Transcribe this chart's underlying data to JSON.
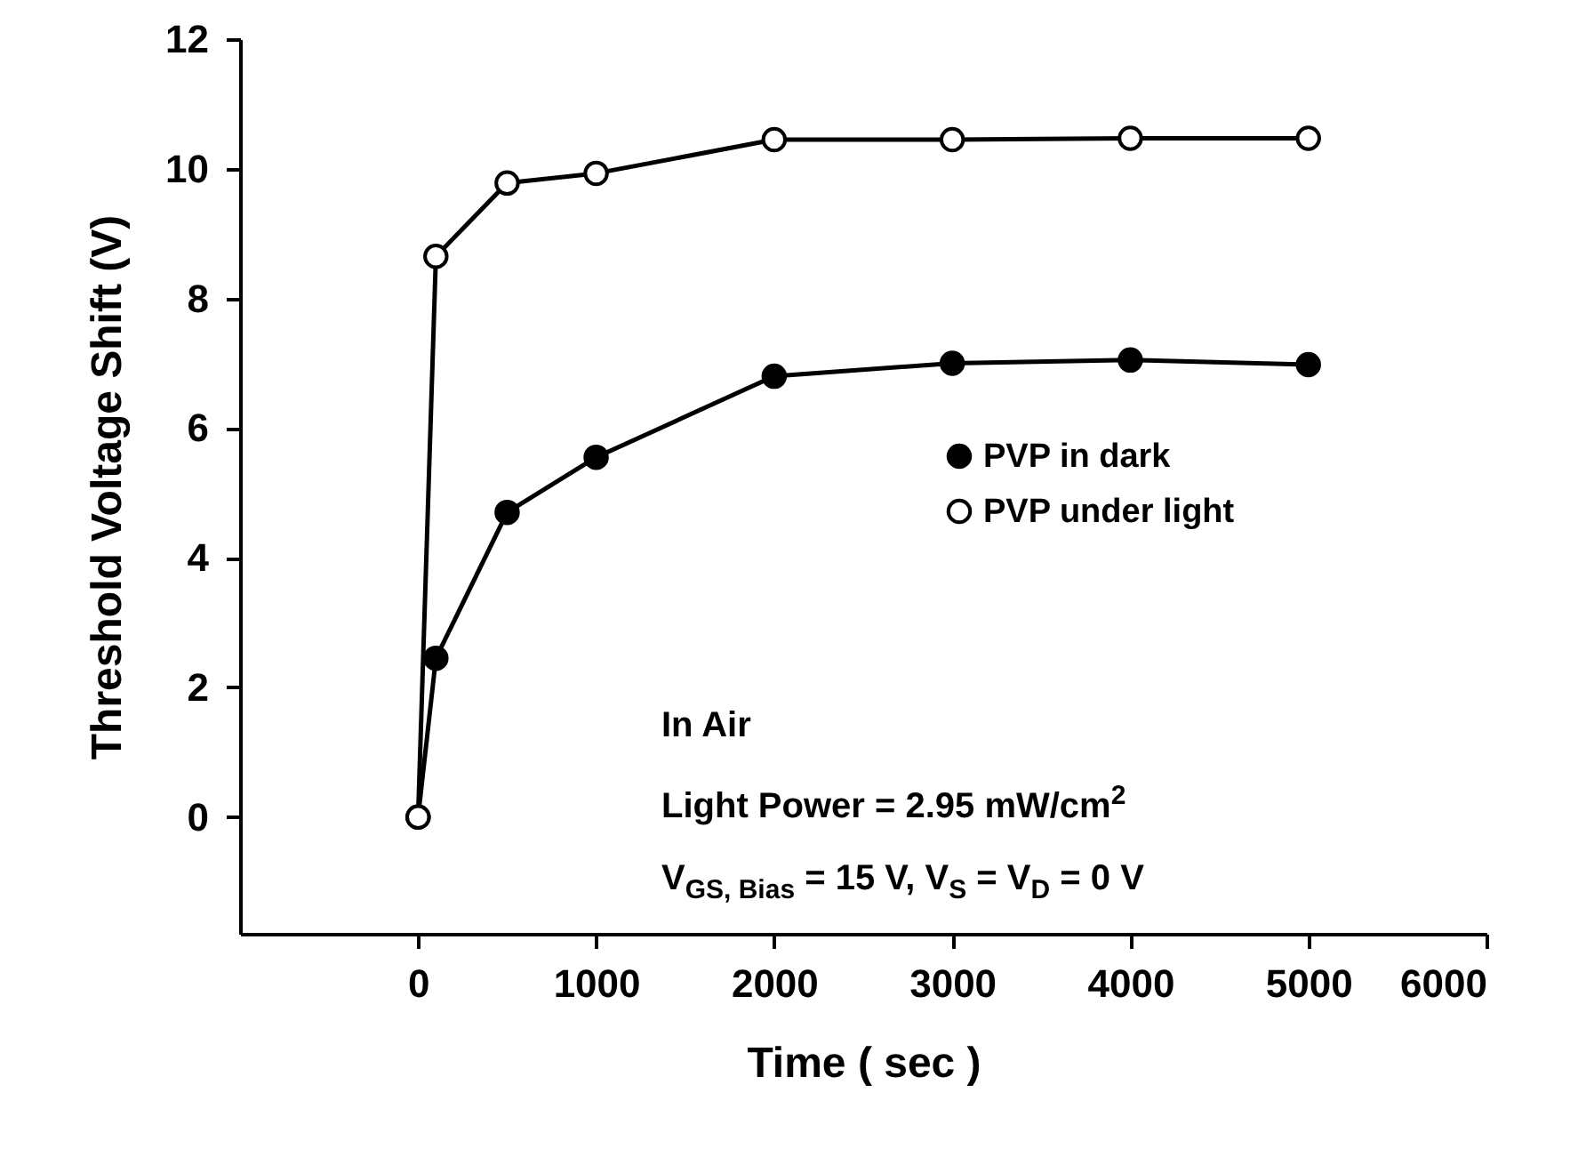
{
  "chart_data": {
    "type": "line",
    "xlabel": "Time  ( sec )",
    "ylabel": "Threshold Voltage Shift  (V)",
    "x": [
      0,
      100,
      500,
      1000,
      2000,
      3000,
      4000,
      5000
    ],
    "series": [
      {
        "name": "PVP in dark",
        "color": "#000000",
        "values": [
          0,
          2.45,
          4.7,
          5.55,
          6.8,
          7.0,
          7.05,
          6.98
        ]
      },
      {
        "name": "PVP under light",
        "color": "#000000",
        "values": [
          0,
          8.65,
          9.78,
          9.93,
          10.45,
          10.45,
          10.47,
          10.47
        ]
      }
    ],
    "xlim": [
      -1000,
      6000
    ],
    "xticks": [
      0,
      1000,
      2000,
      3000,
      4000,
      5000,
      6000
    ],
    "ylim": [
      -1.8,
      12
    ],
    "yticks": [
      0,
      2,
      4,
      6,
      8,
      10,
      12
    ],
    "grid": false,
    "legend": "right",
    "marker": "circle",
    "line_style": "solid",
    "annotations": [
      "In Air",
      "Light Power = 2.95 mW/cm$^{2}$",
      "V$_{GS, Bias}$ = 15 V, V$_{S}$ = V$_{D}$ = 0 V"
    ]
  }
}
